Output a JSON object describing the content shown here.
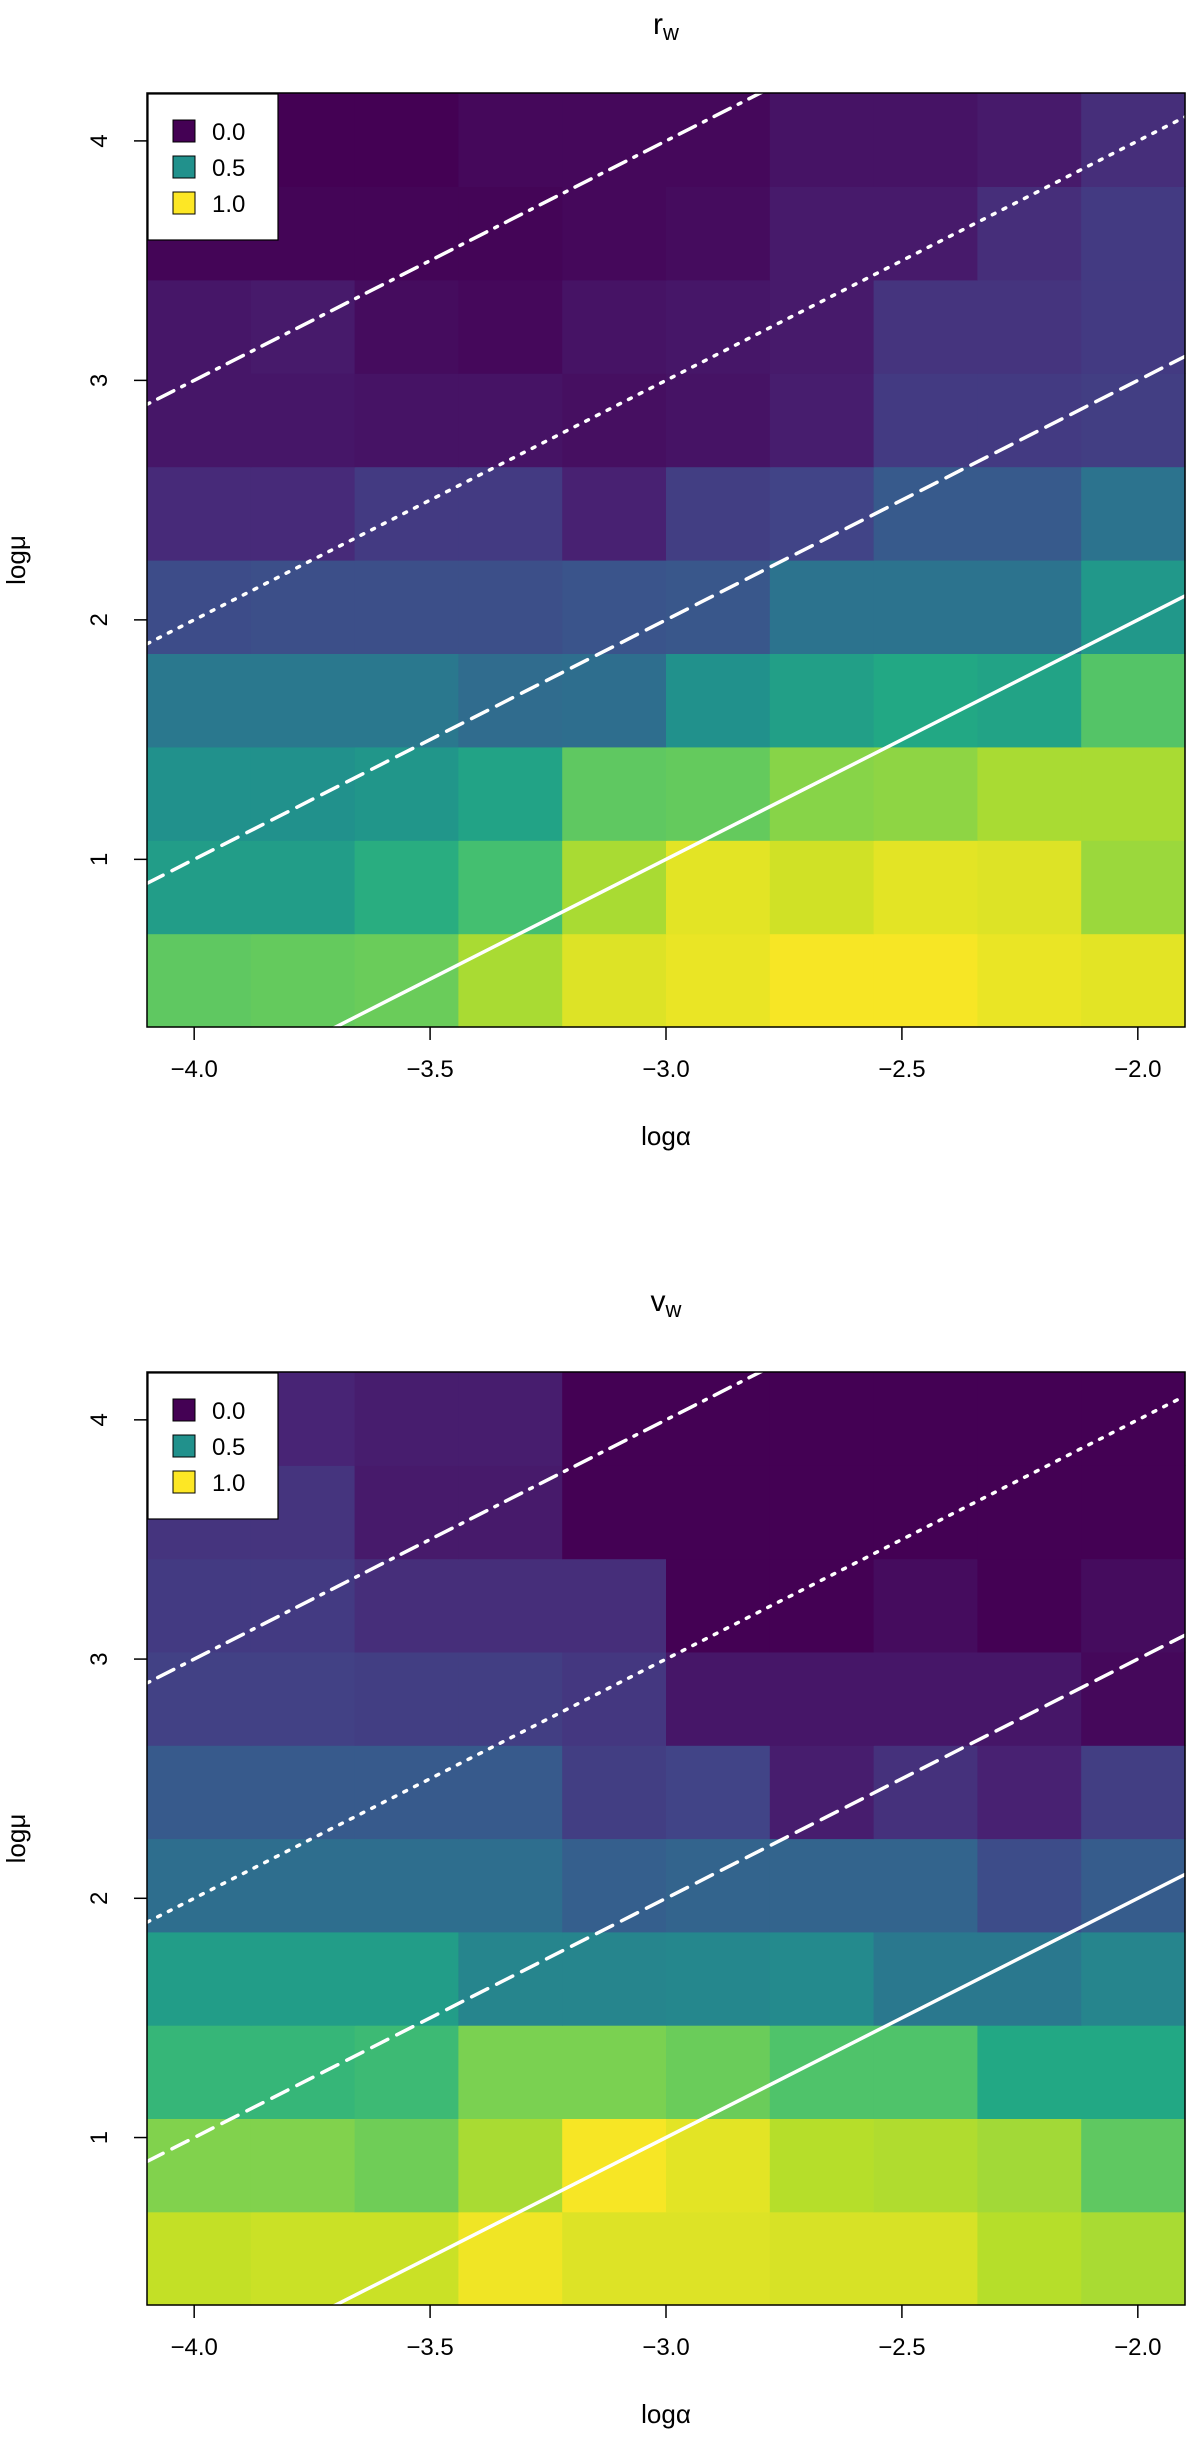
{
  "chart_data": [
    {
      "type": "heatmap",
      "title": "r",
      "title_sub": "w",
      "xlabel": "logα",
      "ylabel": "logμ",
      "x_ticks": [
        "−4.0",
        "−3.5",
        "−3.0",
        "−2.5",
        "−2.0"
      ],
      "x_tick_values": [
        -4.0,
        -3.5,
        -3.0,
        -2.5,
        -2.0
      ],
      "y_ticks": [
        "1",
        "2",
        "3",
        "4"
      ],
      "y_tick_values": [
        1,
        2,
        3,
        4
      ],
      "xlim": [
        -4.1,
        -1.9
      ],
      "ylim": [
        0.3,
        4.2
      ],
      "x_bin_edges": [
        -4.1,
        -3.88,
        -3.66,
        -3.44,
        -3.22,
        -3.0,
        -2.78,
        -2.56,
        -2.34,
        -2.12,
        -1.9
      ],
      "y_bin_edges": [
        0.3,
        0.69,
        1.08,
        1.47,
        1.86,
        2.25,
        2.64,
        3.03,
        3.42,
        3.81,
        4.2
      ],
      "colorscale": "viridis",
      "values": [
        [
          0.75,
          0.76,
          0.77,
          0.87,
          0.95,
          0.97,
          0.99,
          0.99,
          0.97,
          0.96
        ],
        [
          0.55,
          0.55,
          0.62,
          0.7,
          0.87,
          0.96,
          0.93,
          0.96,
          0.95,
          0.85
        ],
        [
          0.5,
          0.5,
          0.52,
          0.58,
          0.75,
          0.76,
          0.82,
          0.83,
          0.87,
          0.87
        ],
        [
          0.4,
          0.4,
          0.4,
          0.35,
          0.36,
          0.5,
          0.56,
          0.6,
          0.58,
          0.73
        ],
        [
          0.23,
          0.24,
          0.24,
          0.24,
          0.26,
          0.27,
          0.38,
          0.38,
          0.38,
          0.53
        ],
        [
          0.12,
          0.12,
          0.17,
          0.17,
          0.09,
          0.18,
          0.2,
          0.28,
          0.28,
          0.38
        ],
        [
          0.06,
          0.06,
          0.05,
          0.05,
          0.04,
          0.05,
          0.08,
          0.17,
          0.17,
          0.18
        ],
        [
          0.06,
          0.07,
          0.03,
          0.02,
          0.05,
          0.06,
          0.07,
          0.15,
          0.15,
          0.17
        ],
        [
          0.01,
          0.01,
          0.01,
          0.01,
          0.02,
          0.03,
          0.07,
          0.07,
          0.13,
          0.17
        ],
        [
          0.0,
          0.0,
          0.0,
          0.02,
          0.02,
          0.02,
          0.05,
          0.05,
          0.07,
          0.13
        ]
      ],
      "legend": {
        "placement": "top-left",
        "entries": [
          {
            "label": "0.0",
            "value": 0.0
          },
          {
            "label": "0.5",
            "value": 0.5
          },
          {
            "label": "1.0",
            "value": 1.0
          }
        ]
      },
      "lines": [
        {
          "style": "solid",
          "color": "#ffffff",
          "slope": 1,
          "intercept": 4.0
        },
        {
          "style": "dashed",
          "color": "#ffffff",
          "slope": 1,
          "intercept": 5.0
        },
        {
          "style": "dotted",
          "color": "#ffffff",
          "slope": 1,
          "intercept": 6.0
        },
        {
          "style": "dotdash",
          "color": "#ffffff",
          "slope": 1,
          "intercept": 7.0
        }
      ]
    },
    {
      "type": "heatmap",
      "title": "v",
      "title_sub": "w",
      "xlabel": "logα",
      "ylabel": "logμ",
      "x_ticks": [
        "−4.0",
        "−3.5",
        "−3.0",
        "−2.5",
        "−2.0"
      ],
      "x_tick_values": [
        -4.0,
        -3.5,
        -3.0,
        -2.5,
        -2.0
      ],
      "y_ticks": [
        "1",
        "2",
        "3",
        "4"
      ],
      "y_tick_values": [
        1,
        2,
        3,
        4
      ],
      "xlim": [
        -4.1,
        -1.9
      ],
      "ylim": [
        0.3,
        4.2
      ],
      "x_bin_edges": [
        -4.1,
        -3.88,
        -3.66,
        -3.44,
        -3.22,
        -3.0,
        -2.78,
        -2.56,
        -2.34,
        -2.12,
        -1.9
      ],
      "y_bin_edges": [
        0.3,
        0.69,
        1.08,
        1.47,
        1.86,
        2.25,
        2.64,
        3.03,
        3.42,
        3.81,
        4.2
      ],
      "colorscale": "viridis",
      "values": [
        [
          0.91,
          0.92,
          0.92,
          0.98,
          0.95,
          0.95,
          0.94,
          0.94,
          0.89,
          0.87
        ],
        [
          0.81,
          0.81,
          0.78,
          0.87,
          0.99,
          0.96,
          0.89,
          0.88,
          0.86,
          0.75
        ],
        [
          0.66,
          0.66,
          0.68,
          0.8,
          0.8,
          0.77,
          0.72,
          0.72,
          0.6,
          0.6
        ],
        [
          0.55,
          0.55,
          0.55,
          0.45,
          0.45,
          0.46,
          0.47,
          0.4,
          0.4,
          0.45
        ],
        [
          0.36,
          0.36,
          0.36,
          0.36,
          0.3,
          0.32,
          0.32,
          0.32,
          0.23,
          0.29
        ],
        [
          0.28,
          0.28,
          0.28,
          0.28,
          0.18,
          0.2,
          0.08,
          0.14,
          0.09,
          0.18
        ],
        [
          0.19,
          0.19,
          0.18,
          0.18,
          0.16,
          0.06,
          0.06,
          0.06,
          0.06,
          0.02
        ],
        [
          0.17,
          0.17,
          0.13,
          0.13,
          0.13,
          0.0,
          0.0,
          0.03,
          0.0,
          0.03
        ],
        [
          0.15,
          0.15,
          0.07,
          0.07,
          0.0,
          0.0,
          0.0,
          0.0,
          0.0,
          0.0
        ],
        [
          0.1,
          0.1,
          0.08,
          0.08,
          0.0,
          0.0,
          0.0,
          0.0,
          0.0,
          0.0
        ]
      ],
      "legend": {
        "placement": "top-left",
        "entries": [
          {
            "label": "0.0",
            "value": 0.0
          },
          {
            "label": "0.5",
            "value": 0.5
          },
          {
            "label": "1.0",
            "value": 1.0
          }
        ]
      },
      "lines": [
        {
          "style": "solid",
          "color": "#ffffff",
          "slope": 1,
          "intercept": 4.0
        },
        {
          "style": "dashed",
          "color": "#ffffff",
          "slope": 1,
          "intercept": 5.0
        },
        {
          "style": "dotted",
          "color": "#ffffff",
          "slope": 1,
          "intercept": 6.0
        },
        {
          "style": "dotdash",
          "color": "#ffffff",
          "slope": 1,
          "intercept": 7.0
        }
      ]
    }
  ]
}
